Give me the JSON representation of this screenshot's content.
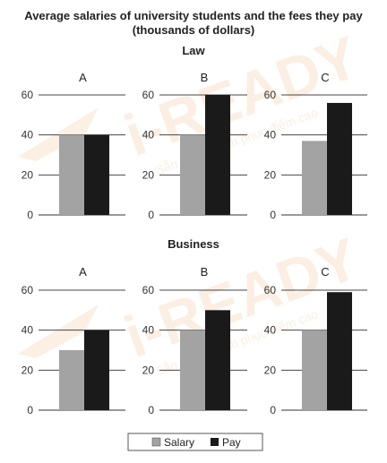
{
  "chart_data": {
    "type": "bar",
    "title_line1": "Average salaries of university students and the fees they pay",
    "title_line2": "(thousands of dollars)",
    "ylim": [
      0,
      60
    ],
    "yticks": [
      0,
      20,
      40,
      60
    ],
    "grid": true,
    "legend_position": "bottom-center",
    "series": [
      {
        "name": "Salary",
        "color": "#a3a3a3"
      },
      {
        "name": "Pay",
        "color": "#1a1a1a"
      }
    ],
    "groups": [
      {
        "name": "Law",
        "panels": [
          {
            "label": "A",
            "salary": 40,
            "pay": 40
          },
          {
            "label": "B",
            "salary": 40,
            "pay": 60
          },
          {
            "label": "C",
            "salary": 37,
            "pay": 56
          }
        ]
      },
      {
        "name": "Business",
        "panels": [
          {
            "label": "A",
            "salary": 30,
            "pay": 40
          },
          {
            "label": "B",
            "salary": 40,
            "pay": 50
          },
          {
            "label": "C",
            "salary": 40,
            "pay": 59
          }
        ]
      }
    ]
  },
  "watermark": {
    "brand": "i-READY",
    "tagline": "Sẵn sàng chinh phục điểm cao"
  }
}
